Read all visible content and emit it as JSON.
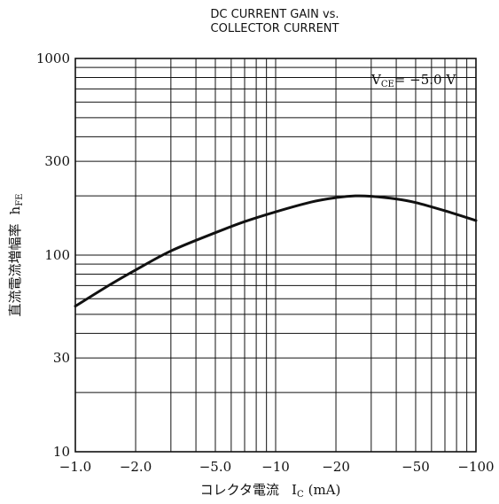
{
  "chart_data": {
    "type": "line",
    "title_line1": "DC CURRENT GAIN vs.",
    "title_line2": "COLLECTOR CURRENT",
    "xlabel_main": "コレクタ電流",
    "xlabel_sym": "I",
    "xlabel_sub": "C",
    "xlabel_unit": "(mA)",
    "ylabel_main": "直流電流増幅率",
    "ylabel_sym": "h",
    "ylabel_sub": "FE",
    "annotation_prefix": "V",
    "annotation_sub": "CE",
    "annotation_value": "= −5.0 V",
    "x_scale": "log",
    "y_scale": "log",
    "xlim": [
      1,
      100
    ],
    "ylim": [
      10,
      1000
    ],
    "x_ticks": [
      {
        "value": 1,
        "label": "−1.0"
      },
      {
        "value": 2,
        "label": "−2.0"
      },
      {
        "value": 5,
        "label": "−5.0"
      },
      {
        "value": 10,
        "label": "−10"
      },
      {
        "value": 20,
        "label": "−20"
      },
      {
        "value": 50,
        "label": "−50"
      },
      {
        "value": 100,
        "label": "−100"
      }
    ],
    "y_ticks": [
      {
        "value": 10,
        "label": "10"
      },
      {
        "value": 30,
        "label": "30"
      },
      {
        "value": 100,
        "label": "100"
      },
      {
        "value": 300,
        "label": "300"
      },
      {
        "value": 1000,
        "label": "1000"
      }
    ],
    "grid": true,
    "series": [
      {
        "x": [
          1,
          1.5,
          2,
          3,
          5,
          7,
          10,
          15,
          20,
          25,
          30,
          40,
          50,
          70,
          100
        ],
        "y": [
          55,
          71,
          84,
          105,
          130,
          148,
          166,
          186,
          196,
          200,
          199,
          193,
          185,
          168,
          150
        ]
      }
    ]
  }
}
